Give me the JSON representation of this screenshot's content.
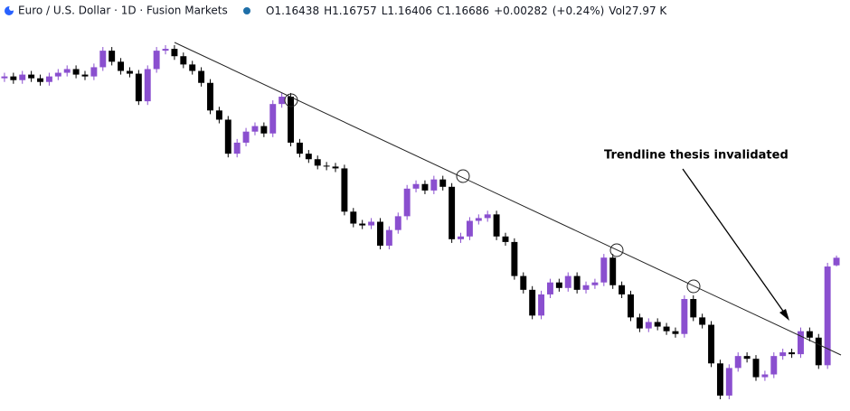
{
  "chart_data": {
    "type": "candlestick",
    "title": "Euro / U.S. Dollar · 1D · Fusion Markets",
    "legend_labels": {
      "open": "O",
      "high": "H",
      "low": "L",
      "close": "C",
      "volume": "Vol"
    },
    "change": "+0.00282",
    "change_percent": "(+0.24%)",
    "volume": "27.97 K",
    "annotation": "Trendline thesis invalidated",
    "up_color": "#8a4fcf",
    "down_color": "#000000",
    "open": [
      1.2254,
      1.226,
      1.2248,
      1.2266,
      1.2254,
      1.2242,
      1.226,
      1.2272,
      1.2284,
      1.2266,
      1.226,
      1.229,
      1.2344,
      1.2308,
      1.2278,
      1.2269,
      1.2179,
      1.2284,
      1.2344,
      1.235,
      1.2326,
      1.2299,
      1.2278,
      1.2239,
      1.2149,
      1.2119,
      1.2008,
      1.2044,
      1.208,
      1.2098,
      1.2074,
      1.217,
      1.2194,
      1.2044,
      1.2008,
      1.199,
      1.1969,
      1.1966,
      1.196,
      1.1819,
      1.178,
      1.1774,
      1.1786,
      1.1708,
      1.1759,
      1.1804,
      1.1894,
      1.1909,
      1.1888,
      1.1924,
      1.19,
      1.1729,
      1.1738,
      1.1789,
      1.1798,
      1.181,
      1.1738,
      1.172,
      1.1609,
      1.1564,
      1.148,
      1.1549,
      1.1588,
      1.157,
      1.1609,
      1.1564,
      1.1579,
      1.1588,
      1.1669,
      1.1579,
      1.1549,
      1.1474,
      1.1438,
      1.1459,
      1.1444,
      1.1429,
      1.142,
      1.1534,
      1.1474,
      1.145,
      1.1324,
      1.1219,
      1.1309,
      1.1348,
      1.1339,
      1.1279,
      1.1288,
      1.1348,
      1.136,
      1.1354,
      1.1429,
      1.1408,
      1.1318,
      1.16438
    ],
    "high": [
      1.2272,
      1.2272,
      1.2278,
      1.2278,
      1.2266,
      1.2272,
      1.2284,
      1.2296,
      1.2296,
      1.2278,
      1.2302,
      1.2356,
      1.2356,
      1.232,
      1.229,
      1.2281,
      1.2296,
      1.2356,
      1.2362,
      1.2362,
      1.2338,
      1.2311,
      1.229,
      1.2251,
      1.2161,
      1.2131,
      1.2056,
      1.2092,
      1.211,
      1.211,
      1.2182,
      1.2206,
      1.2206,
      1.2056,
      1.202,
      1.2002,
      1.1981,
      1.1978,
      1.1972,
      1.1831,
      1.1792,
      1.1798,
      1.1798,
      1.1771,
      1.1816,
      1.1906,
      1.1921,
      1.1921,
      1.1936,
      1.1936,
      1.1912,
      1.175,
      1.1801,
      1.181,
      1.1822,
      1.1822,
      1.175,
      1.1732,
      1.1621,
      1.1576,
      1.1561,
      1.16,
      1.16,
      1.1621,
      1.1621,
      1.1591,
      1.16,
      1.1681,
      1.1681,
      1.1591,
      1.1561,
      1.1486,
      1.1471,
      1.1471,
      1.1456,
      1.1441,
      1.1546,
      1.1546,
      1.1486,
      1.1462,
      1.1336,
      1.1321,
      1.136,
      1.136,
      1.1351,
      1.13,
      1.136,
      1.1372,
      1.1372,
      1.1441,
      1.1441,
      1.142,
      1.1652,
      1.16757
    ],
    "low": [
      1.2242,
      1.2236,
      1.2236,
      1.2242,
      1.223,
      1.223,
      1.2248,
      1.226,
      1.2254,
      1.2248,
      1.2248,
      1.2278,
      1.2296,
      1.2266,
      1.2257,
      1.2167,
      1.2167,
      1.2272,
      1.2332,
      1.2314,
      1.2287,
      1.2266,
      1.2227,
      1.2137,
      1.2107,
      1.1996,
      1.1996,
      1.2032,
      1.2068,
      1.2062,
      1.2062,
      1.2158,
      1.2032,
      1.1996,
      1.1978,
      1.1957,
      1.1954,
      1.1948,
      1.1807,
      1.1768,
      1.1762,
      1.1762,
      1.1696,
      1.1696,
      1.1747,
      1.1792,
      1.1882,
      1.1876,
      1.1876,
      1.1888,
      1.1717,
      1.1717,
      1.1726,
      1.1777,
      1.1786,
      1.1726,
      1.1708,
      1.1597,
      1.1552,
      1.1468,
      1.1468,
      1.1537,
      1.1558,
      1.1558,
      1.1552,
      1.1552,
      1.1567,
      1.1576,
      1.1567,
      1.1537,
      1.1462,
      1.1426,
      1.1426,
      1.1432,
      1.1417,
      1.1408,
      1.1408,
      1.1462,
      1.1438,
      1.1312,
      1.1207,
      1.1207,
      1.1297,
      1.1327,
      1.1267,
      1.1267,
      1.1276,
      1.1336,
      1.1342,
      1.1342,
      1.1396,
      1.1306,
      1.1306,
      1.16406
    ],
    "close": [
      1.226,
      1.2248,
      1.2266,
      1.2254,
      1.2242,
      1.226,
      1.2272,
      1.2284,
      1.2266,
      1.226,
      1.229,
      1.2344,
      1.2308,
      1.2278,
      1.2269,
      1.2179,
      1.2284,
      1.2344,
      1.235,
      1.2326,
      1.2299,
      1.2278,
      1.2239,
      1.2149,
      1.2119,
      1.2008,
      1.2044,
      1.208,
      1.2098,
      1.2074,
      1.217,
      1.2194,
      1.2044,
      1.2008,
      1.199,
      1.1969,
      1.1966,
      1.196,
      1.1819,
      1.178,
      1.1774,
      1.1786,
      1.1708,
      1.1759,
      1.1804,
      1.1894,
      1.1909,
      1.1888,
      1.1924,
      1.19,
      1.1729,
      1.1738,
      1.1789,
      1.1798,
      1.181,
      1.1738,
      1.172,
      1.1609,
      1.1564,
      1.148,
      1.1549,
      1.1588,
      1.157,
      1.1609,
      1.1564,
      1.1579,
      1.1588,
      1.1669,
      1.1579,
      1.1549,
      1.1474,
      1.1438,
      1.1459,
      1.1444,
      1.1429,
      1.142,
      1.1534,
      1.1474,
      1.145,
      1.1324,
      1.1219,
      1.1309,
      1.1348,
      1.1339,
      1.1279,
      1.1288,
      1.1348,
      1.136,
      1.1354,
      1.1429,
      1.1408,
      1.1318,
      1.164,
      1.16686
    ]
  }
}
